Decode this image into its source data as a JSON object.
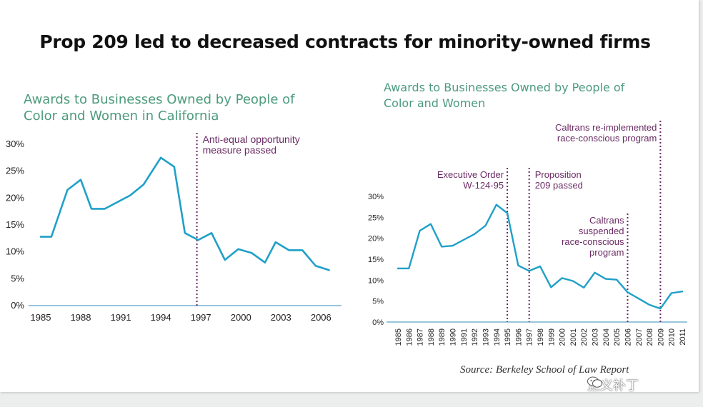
{
  "page_title": "Prop 209 led to decreased contracts for minority-owned firms",
  "source": "Source: Berkeley School of Law Report",
  "watermark": "正义补丁",
  "colors": {
    "line": "#1fa0c8",
    "annotation": "#6a2a63",
    "chart_title": "#4c9a7d",
    "axis": "#5aa4c8"
  },
  "chart_data": [
    {
      "type": "line",
      "title_lines": [
        "Awards to Businesses Owned by People of",
        "Color and Women in California"
      ],
      "xlabel": "",
      "ylabel": "",
      "xlim": [
        1985,
        2007
      ],
      "ylim": [
        0,
        30
      ],
      "x_ticks": [
        "1985",
        "1988",
        "1991",
        "1994",
        "1997",
        "2000",
        "2003",
        "2006"
      ],
      "y_ticks": [
        "30%",
        "25%",
        "20%",
        "15%",
        "10%",
        "5%",
        "0%"
      ],
      "series": [
        {
          "x": [
            1985,
            1985.8,
            1987,
            1988,
            1988.8,
            1989.8,
            1991.7,
            1992.7,
            1994,
            1995,
            1995.8,
            1996.8,
            1997.8,
            1998.8,
            1999.8,
            2000.8,
            2001.8,
            2002.6,
            2003.6,
            2004.6,
            2005.6,
            2006.6
          ],
          "y": [
            12.8,
            12.8,
            21.5,
            23.4,
            18.0,
            18.0,
            20.5,
            22.5,
            27.5,
            25.8,
            13.5,
            12.2,
            13.5,
            8.5,
            10.5,
            9.8,
            8.0,
            11.8,
            10.3,
            10.3,
            7.4,
            6.6
          ]
        }
      ],
      "annotations": [
        {
          "x": 1996.7,
          "lines": [
            "Anti-equal opportunity",
            "measure passed"
          ]
        }
      ]
    },
    {
      "type": "line",
      "title_lines": [
        "Awards to Businesses Owned by People of",
        "Color and Women"
      ],
      "xlabel": "",
      "ylabel": "",
      "xlim": [
        1985,
        2011
      ],
      "ylim": [
        0,
        30
      ],
      "x_ticks": [
        "1985",
        "1986",
        "1987",
        "1988",
        "1989",
        "1990",
        "1991",
        "1992",
        "1993",
        "1994",
        "1995",
        "1996",
        "1997",
        "1998",
        "1999",
        "2000",
        "2001",
        "2002",
        "2003",
        "2004",
        "2005",
        "2006",
        "2007",
        "2008",
        "2009",
        "2010",
        "2011"
      ],
      "y_ticks": [
        "30%",
        "25%",
        "20%",
        "15%",
        "10%",
        "5%",
        "0%"
      ],
      "series": [
        {
          "x": [
            1985,
            1986,
            1987,
            1988,
            1989,
            1990,
            1991,
            1992,
            1993,
            1994,
            1995,
            1996,
            1997,
            1998,
            1999,
            2000,
            2001,
            2002,
            2003,
            2004,
            2005,
            2006,
            2007,
            2008,
            2009,
            2010,
            2011
          ],
          "y": [
            12.8,
            12.8,
            21.8,
            23.4,
            18.0,
            18.2,
            19.6,
            21.0,
            23.0,
            28.0,
            26.0,
            13.5,
            12.2,
            13.3,
            8.3,
            10.5,
            9.8,
            8.2,
            11.8,
            10.3,
            10.1,
            7.1,
            5.6,
            4.1,
            3.2,
            6.9,
            7.3
          ]
        }
      ],
      "annotations": [
        {
          "x": 1995,
          "lines": [
            "Executive Order",
            "W-124-95"
          ],
          "side": "left"
        },
        {
          "x": 1997,
          "lines": [
            "Proposition",
            "209 passed"
          ],
          "side": "right"
        },
        {
          "x": 2006,
          "lines": [
            "Caltrans",
            "suspended",
            "race-conscious",
            "program"
          ],
          "side": "left"
        },
        {
          "x": 2009,
          "lines": [
            "Caltrans re-implemented",
            "race-conscious program"
          ],
          "side": "left"
        }
      ]
    }
  ]
}
